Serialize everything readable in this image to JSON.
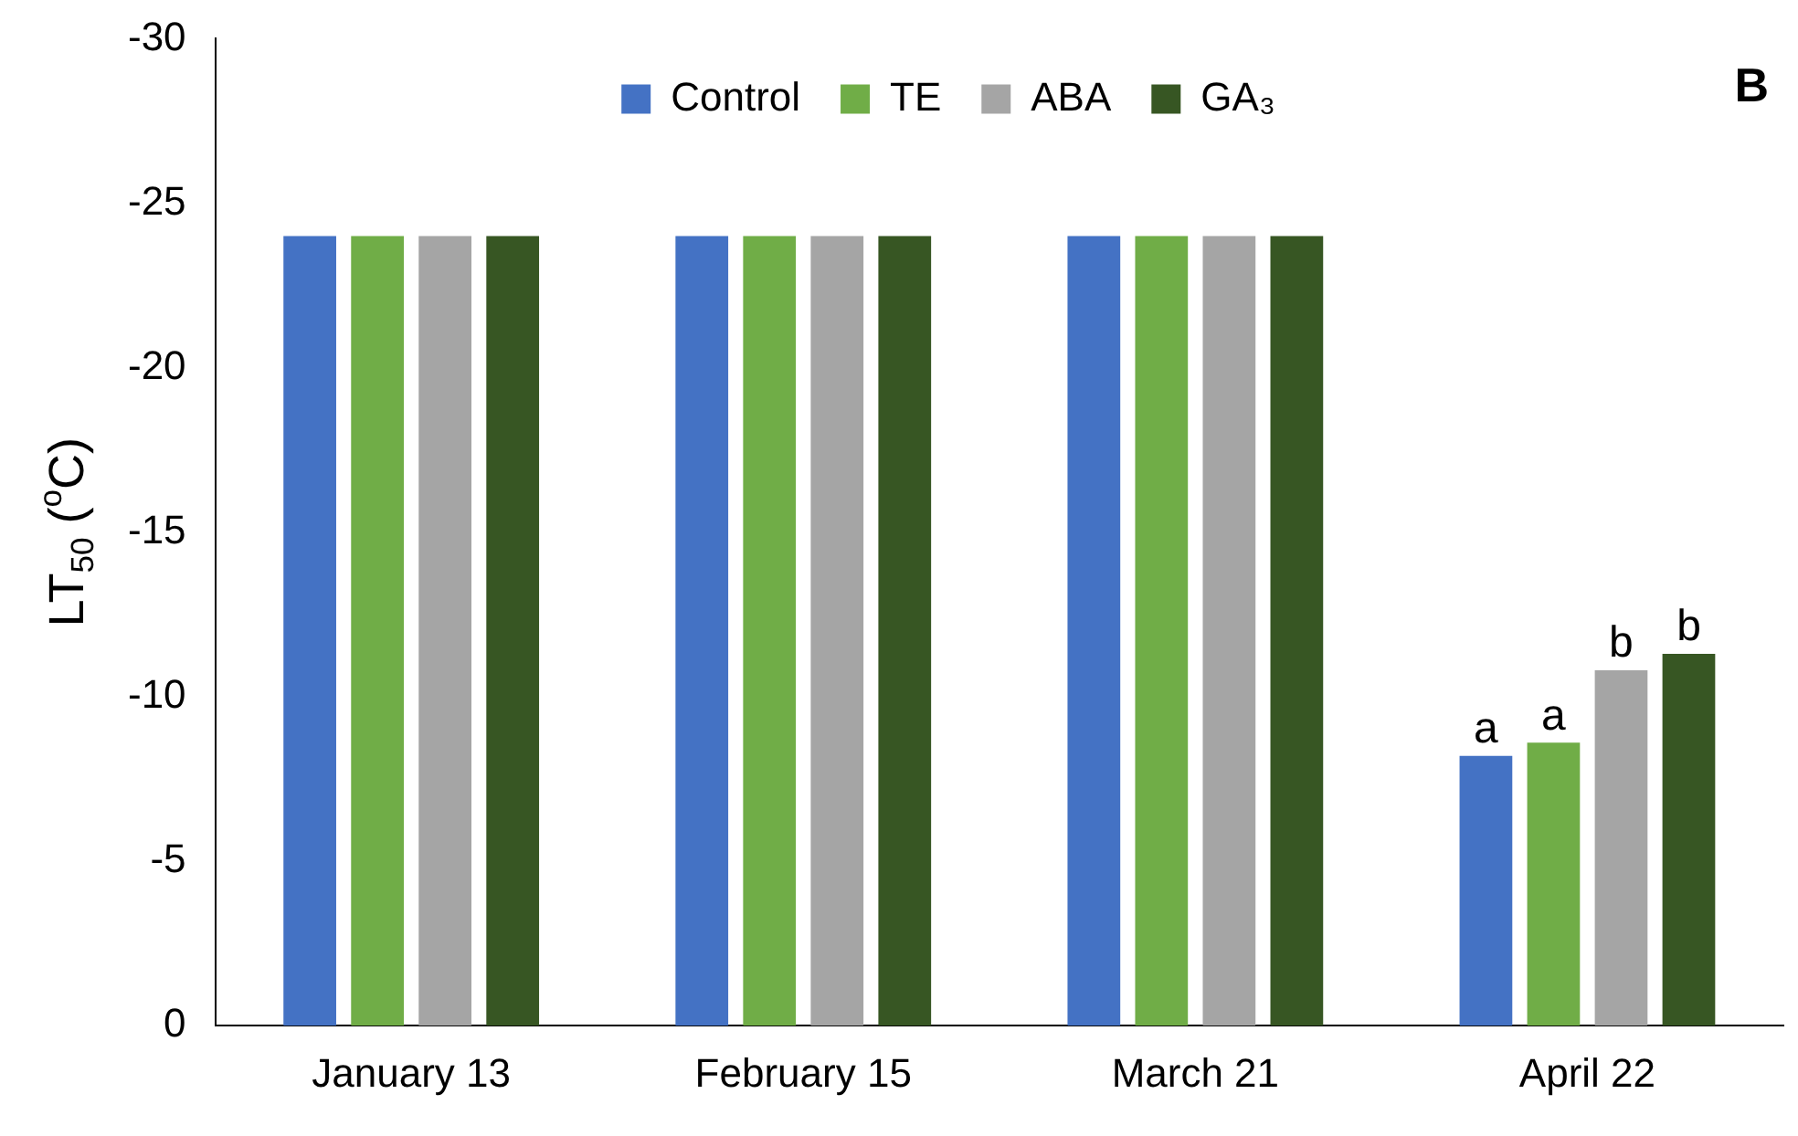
{
  "chart_data": {
    "type": "bar",
    "ylabel": "LT$_{50}$ ($^{o}$C)",
    "categories": [
      "January 13",
      "February 15",
      "March 21",
      "April 22"
    ],
    "series": [
      {
        "name": "Control",
        "color": "#4472c4",
        "values": [
          -24,
          -24,
          -24,
          -8.2
        ],
        "value_labels": [
          null,
          null,
          null,
          "a"
        ]
      },
      {
        "name": "TE",
        "color": "#70ad47",
        "values": [
          -24,
          -24,
          -24,
          -8.6
        ],
        "value_labels": [
          null,
          null,
          null,
          "a"
        ]
      },
      {
        "name": "ABA",
        "color": "#a5a5a5",
        "values": [
          -24,
          -24,
          -24,
          -10.8
        ],
        "value_labels": [
          null,
          null,
          null,
          "b"
        ]
      },
      {
        "name": "GA₃",
        "color": "#375623",
        "values": [
          -24,
          -24,
          -24,
          -11.3
        ],
        "value_labels": [
          null,
          null,
          null,
          "b"
        ]
      }
    ],
    "ylim": [
      0,
      -30
    ],
    "yticks": [
      0,
      -5,
      -10,
      -15,
      -20,
      -25,
      -30
    ],
    "grid": false,
    "legend": "top",
    "annotations": [
      "B"
    ]
  }
}
